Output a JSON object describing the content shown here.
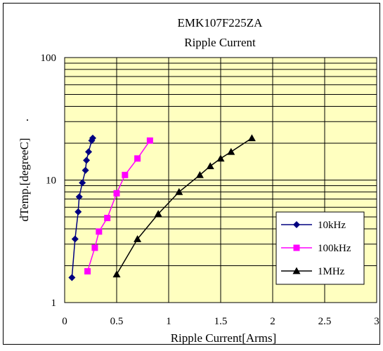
{
  "chart_data": {
    "type": "line",
    "title": "EMK107F225ZA",
    "subtitle": "Ripple Current",
    "xlabel": "Ripple Current[Arms]",
    "ylabel": "dTemp.[degreeC]",
    "ylabel_mark": ".",
    "xlim": [
      0,
      3
    ],
    "ylim": [
      1,
      100
    ],
    "yscale": "log",
    "x_ticks": [
      {
        "value": 0,
        "label": "0"
      },
      {
        "value": 0.5,
        "label": "0.5"
      },
      {
        "value": 1,
        "label": "1"
      },
      {
        "value": 1.5,
        "label": "1.5"
      },
      {
        "value": 2,
        "label": "2"
      },
      {
        "value": 2.5,
        "label": "2.5"
      },
      {
        "value": 3,
        "label": "3"
      }
    ],
    "y_ticks": [
      {
        "value": 1,
        "label": "1"
      },
      {
        "value": 10,
        "label": "10"
      },
      {
        "value": 100,
        "label": "100"
      }
    ],
    "grid": true,
    "legend_position": "bottom-right",
    "plot_background": "#ffffc0",
    "series": [
      {
        "name": "10kHz",
        "color": "#000080",
        "marker": "diamond",
        "x": [
          0.07,
          0.1,
          0.13,
          0.14,
          0.17,
          0.2,
          0.21,
          0.23,
          0.26,
          0.27
        ],
        "y": [
          1.6,
          3.3,
          5.5,
          7.3,
          9.5,
          12,
          14.5,
          17,
          21,
          22
        ]
      },
      {
        "name": "100kHz",
        "color": "#ff00ff",
        "marker": "square",
        "x": [
          0.22,
          0.29,
          0.33,
          0.41,
          0.5,
          0.58,
          0.7,
          0.82
        ],
        "y": [
          1.8,
          2.8,
          3.8,
          4.9,
          7.8,
          11,
          15,
          21
        ]
      },
      {
        "name": "1MHz",
        "color": "#000000",
        "marker": "triangle",
        "x": [
          0.5,
          0.7,
          0.9,
          1.1,
          1.3,
          1.4,
          1.5,
          1.6,
          1.8
        ],
        "y": [
          1.7,
          3.3,
          5.3,
          8,
          11,
          13,
          15,
          17,
          22
        ]
      }
    ]
  }
}
